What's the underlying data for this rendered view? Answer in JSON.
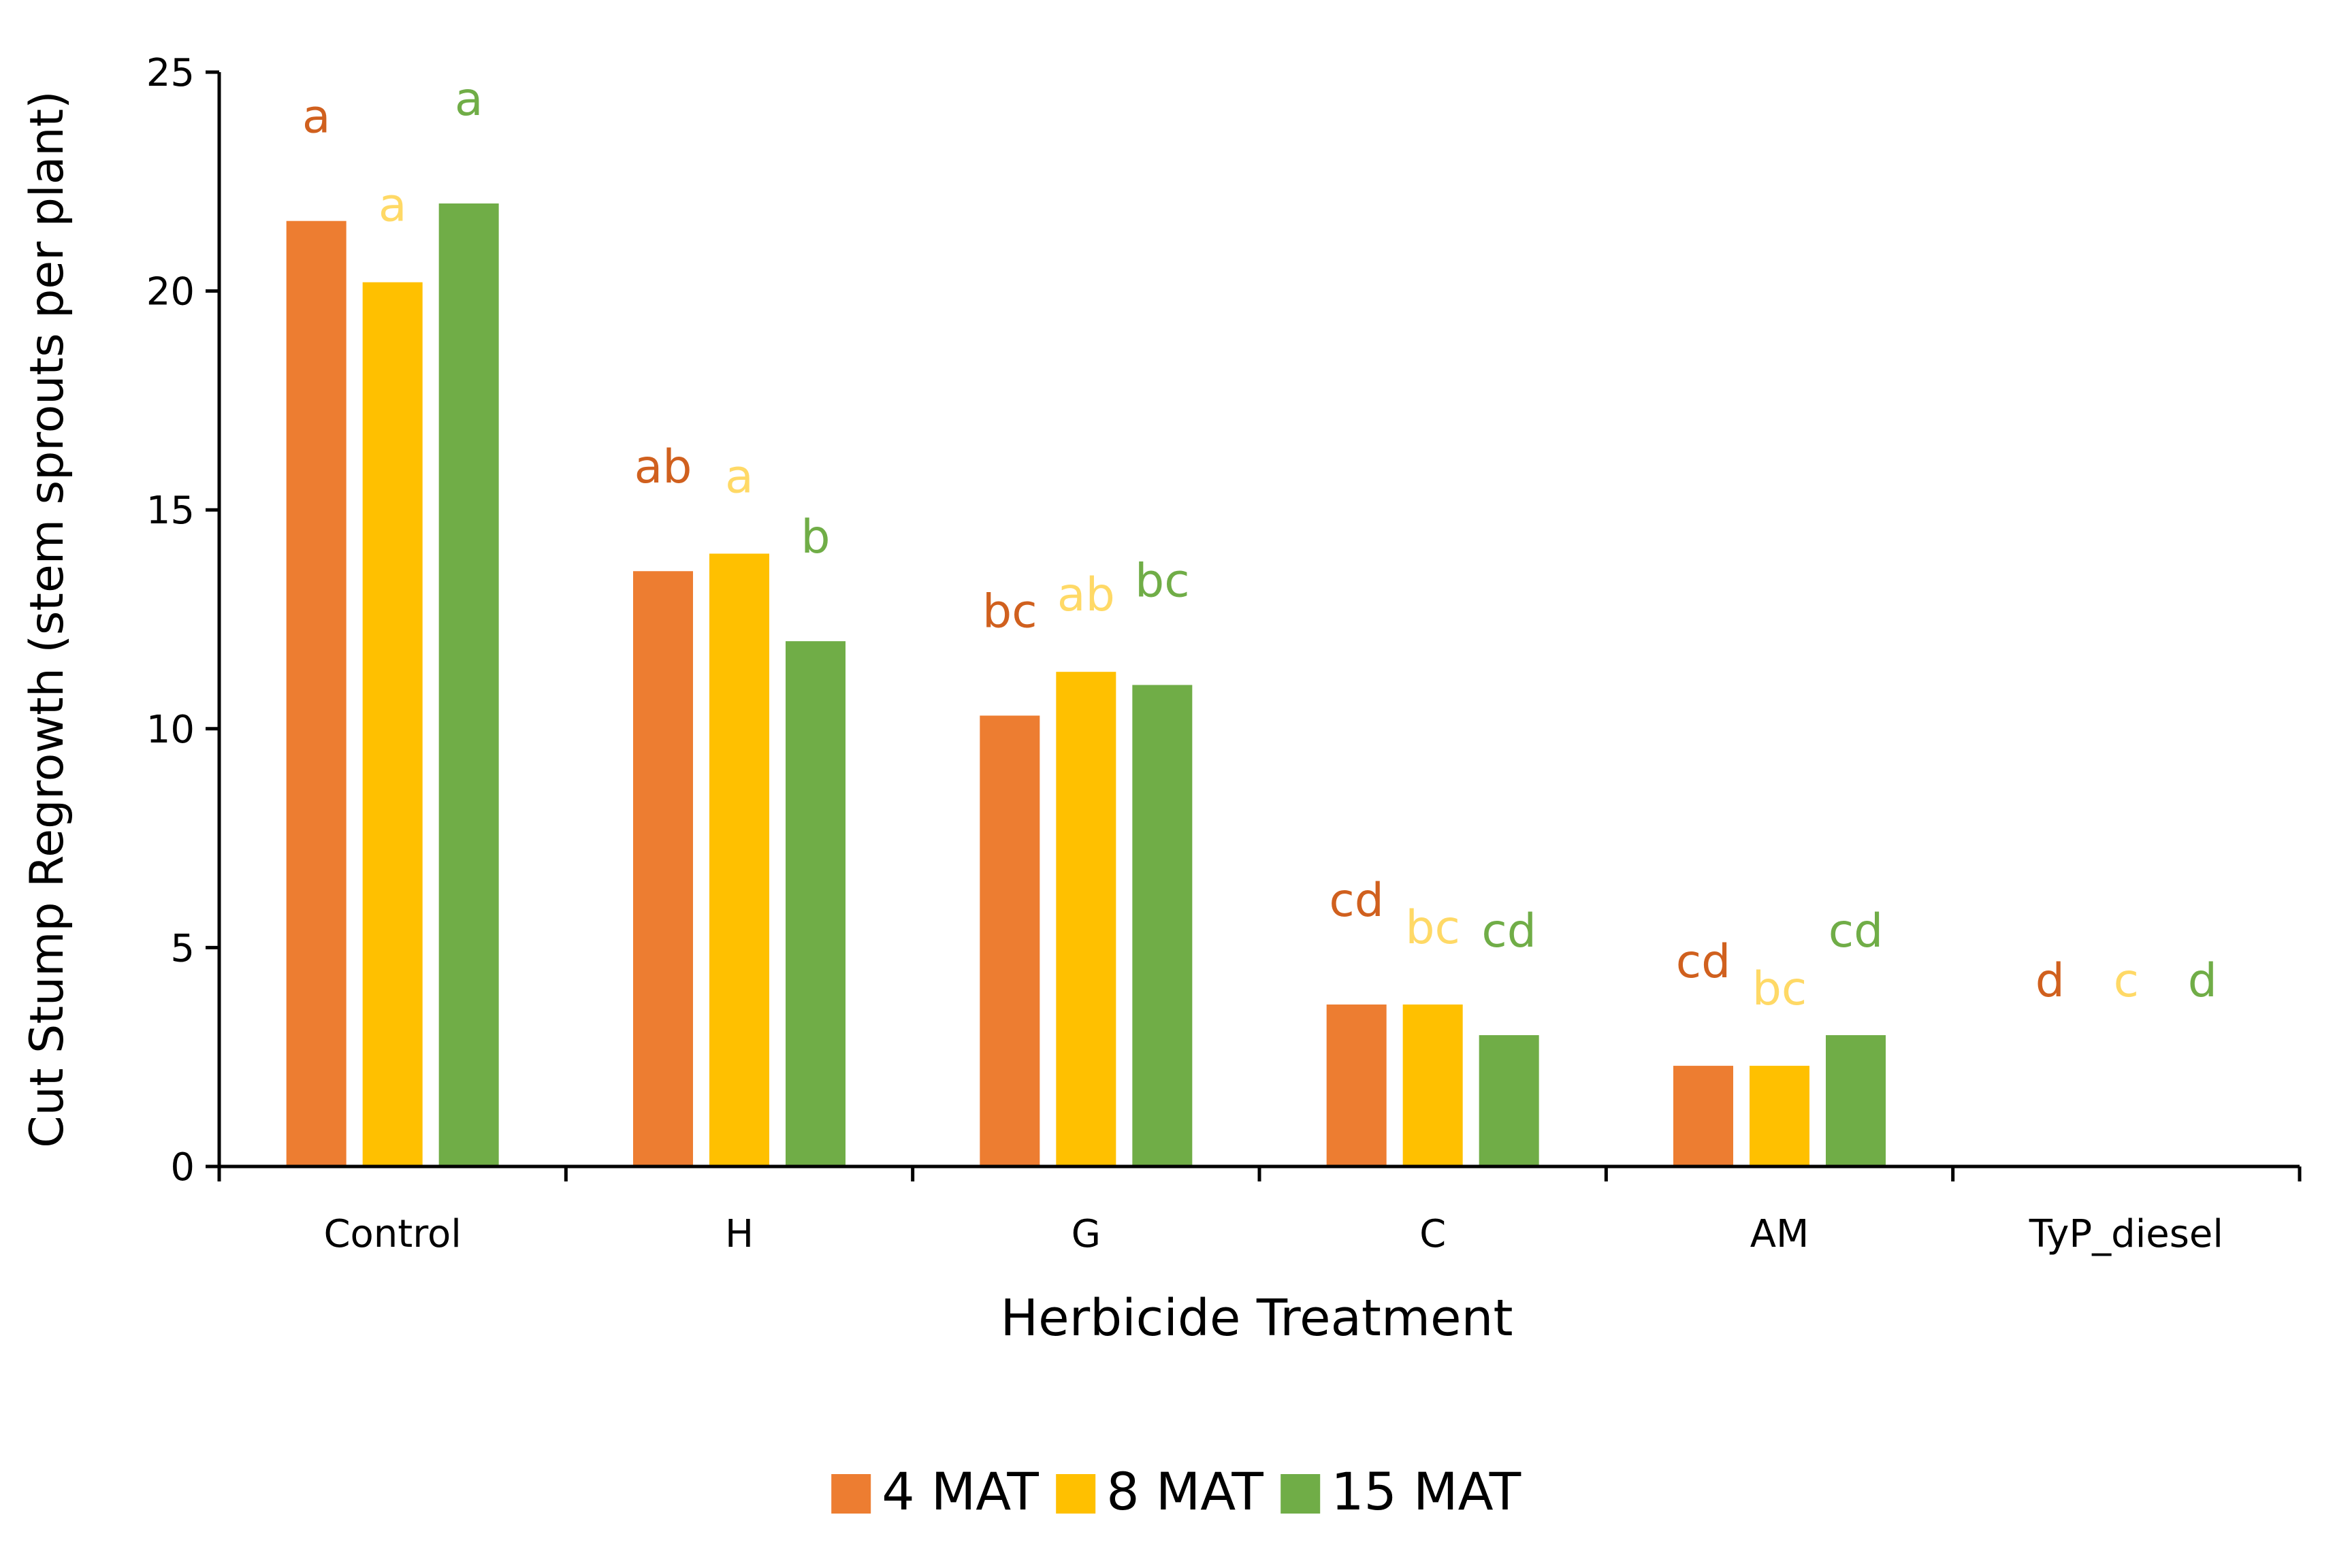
{
  "chart_data": {
    "type": "bar",
    "title": "",
    "xlabel": "Herbicide Treatment",
    "ylabel": "Cut Stump Regrowth (stem sprouts per plant)",
    "ylim": [
      0,
      25
    ],
    "yticks": [
      0,
      5,
      10,
      15,
      20,
      25
    ],
    "grid": false,
    "legend_position": "bottom",
    "categories": [
      "Control",
      "H",
      "G",
      "C",
      "AM",
      "TyP_diesel"
    ],
    "series": [
      {
        "name": "4 MAT",
        "color": "#ED7D31",
        "label_color": "#D0601E",
        "values": [
          21.6,
          13.6,
          10.3,
          3.7,
          2.3,
          0
        ],
        "letters": [
          "a",
          "ab",
          "bc",
          "cd",
          "cd",
          "d"
        ]
      },
      {
        "name": "8 MAT",
        "color": "#FFC000",
        "label_color": "#FFD966",
        "values": [
          20.2,
          14.0,
          11.3,
          3.7,
          2.3,
          0
        ],
        "letters": [
          "a",
          "a",
          "ab",
          "bc",
          "bc",
          "c"
        ]
      },
      {
        "name": "15 MAT",
        "color": "#70AD47",
        "label_color": "#70AD47",
        "values": [
          22.0,
          12.0,
          11.0,
          3.0,
          3.0,
          0
        ],
        "letters": [
          "a",
          "b",
          "bc",
          "cd",
          "cd",
          "d"
        ]
      }
    ]
  }
}
